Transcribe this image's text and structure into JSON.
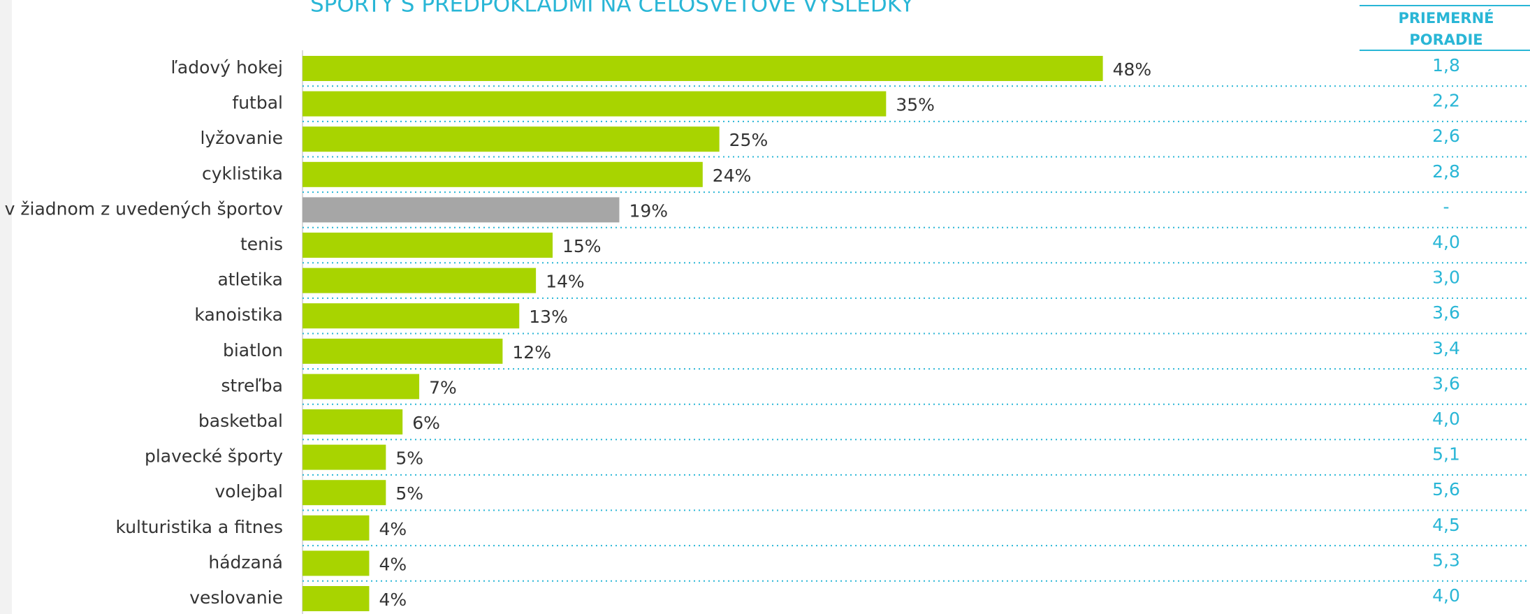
{
  "chart_data": {
    "type": "barh",
    "title": "ŠPORTY S PREDPOKLADMI NA CELOSVETOVÉ VÝSLEDKY",
    "categories": [
      "ľadový hokej",
      "futbal",
      "lyžovanie",
      "cyklistika",
      "v žiadnom z uvedených športov",
      "tenis",
      "atletika",
      "kanoistika",
      "biatlon",
      "streľba",
      "basketbal",
      "plavecké športy",
      "volejbal",
      "kulturistika a fitnes",
      "hádzaná",
      "veslovanie"
    ],
    "values": [
      48,
      35,
      25,
      24,
      19,
      15,
      14,
      13,
      12,
      7,
      6,
      5,
      5,
      4,
      4,
      4
    ],
    "value_labels": [
      "48%",
      "35%",
      "25%",
      "24%",
      "19%",
      "15%",
      "14%",
      "13%",
      "12%",
      "7%",
      "6%",
      "5%",
      "5%",
      "4%",
      "4%",
      "4%"
    ],
    "colors": [
      "#a8d400",
      "#a8d400",
      "#a8d400",
      "#a8d400",
      "#a6a6a6",
      "#a8d400",
      "#a8d400",
      "#a8d400",
      "#a8d400",
      "#a8d400",
      "#a8d400",
      "#a8d400",
      "#a8d400",
      "#a8d400",
      "#a8d400",
      "#a8d400"
    ],
    "xlim": [
      0,
      60
    ],
    "rank_header": [
      "PRIEMERNÉ",
      "PORADIE"
    ],
    "ranks": [
      "1,8",
      "2,2",
      "2,6",
      "2,8",
      "-",
      "4,0",
      "3,0",
      "3,6",
      "3,4",
      "3,6",
      "4,0",
      "5,1",
      "5,6",
      "4,5",
      "5,3",
      "4,0"
    ]
  }
}
